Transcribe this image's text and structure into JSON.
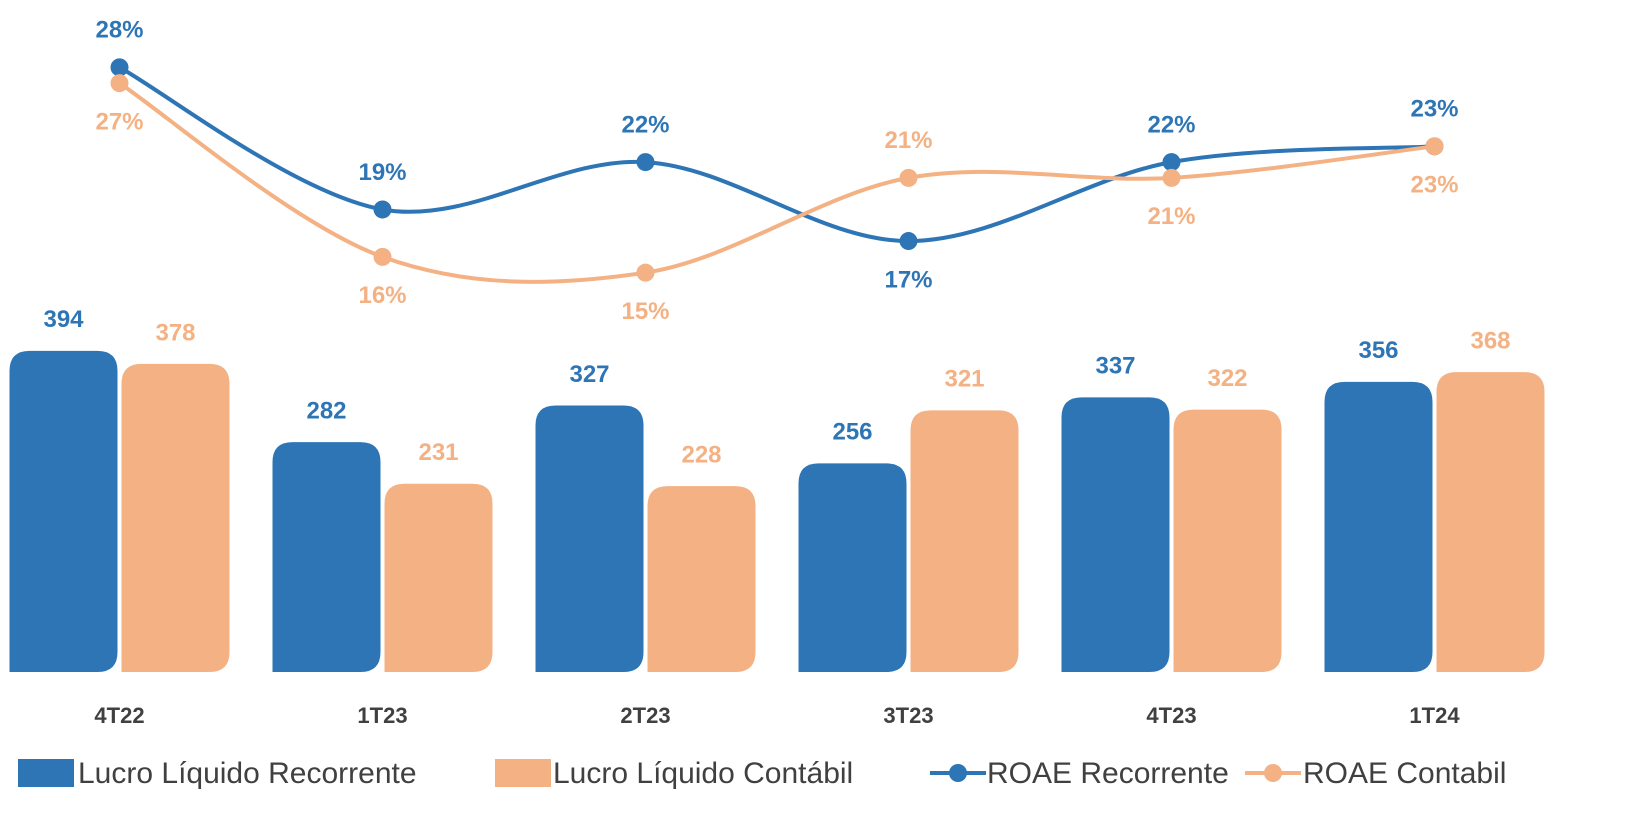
{
  "chart_data": {
    "type": "bar-line",
    "categories": [
      "4T22",
      "1T23",
      "2T23",
      "3T23",
      "4T23",
      "1T24"
    ],
    "series": [
      {
        "name": "Lucro Líquido Recorrente",
        "type": "bar",
        "color": "#2e75b6",
        "values": [
          394,
          282,
          327,
          256,
          337,
          356
        ]
      },
      {
        "name": "Lucro Líquido Contábil",
        "type": "bar",
        "color": "#f4b183",
        "values": [
          378,
          231,
          228,
          321,
          322,
          368
        ]
      },
      {
        "name": "ROAE Recorrente",
        "type": "line",
        "axis": "y2",
        "color": "#2e75b6",
        "values": [
          28,
          19,
          22,
          17,
          22,
          23
        ],
        "value_labels": [
          "28%",
          "19%",
          "22%",
          "17%",
          "22%",
          "23%"
        ]
      },
      {
        "name": "ROAE Contabil",
        "type": "line",
        "axis": "y2",
        "color": "#f4b183",
        "values": [
          27,
          16,
          15,
          21,
          21,
          23
        ],
        "value_labels": [
          "27%",
          "16%",
          "15%",
          "21%",
          "21%",
          "23%"
        ]
      }
    ],
    "ylim": [
      0,
      800
    ],
    "y2lim": [
      12,
      31
    ],
    "legend": "bottom"
  }
}
